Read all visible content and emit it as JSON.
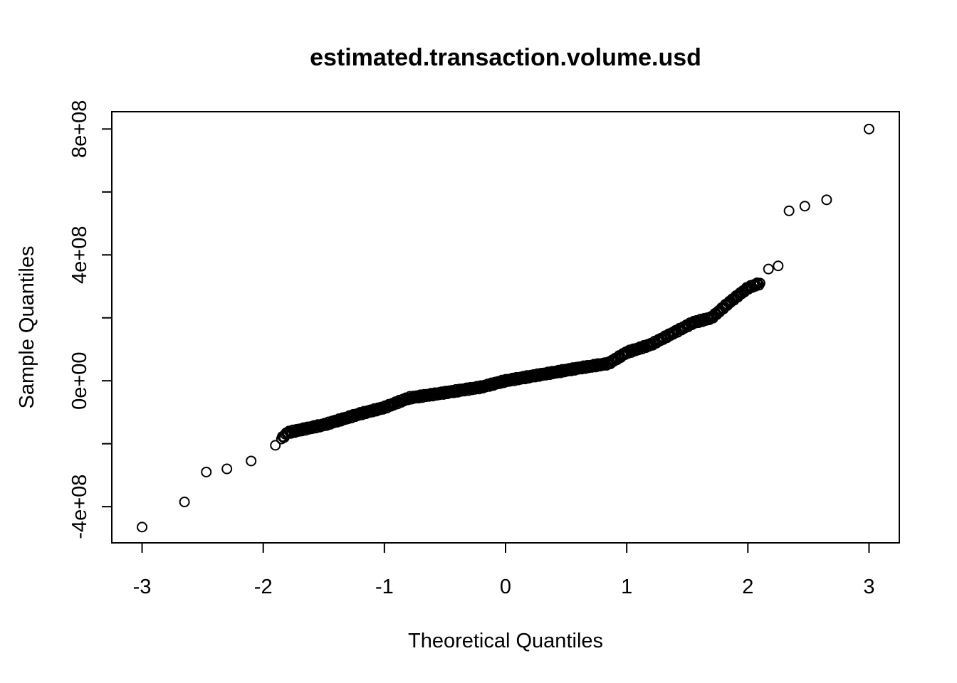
{
  "chart_data": {
    "type": "scatter",
    "title": "estimated.transaction.volume.usd",
    "xlabel": "Theoretical Quantiles",
    "ylabel": "Sample Quantiles",
    "xlim": [
      -3.25,
      3.25
    ],
    "ylim": [
      -515000000,
      855000000
    ],
    "x_ticks": [
      -3,
      -2,
      -1,
      0,
      1,
      2,
      3
    ],
    "x_tick_labels": [
      "-3",
      "-2",
      "-1",
      "0",
      "1",
      "2",
      "3"
    ],
    "y_ticks": [
      -400000000,
      -200000000,
      0,
      200000000,
      400000000,
      600000000,
      800000000
    ],
    "y_tick_labels": [
      "-4e+08",
      "",
      "0e+00",
      "",
      "4e+08",
      "",
      "8e+08"
    ],
    "grid": false,
    "legend": "none",
    "anchors": [
      [
        -3.0,
        -465000000
      ],
      [
        -2.65,
        -385000000
      ],
      [
        -2.47,
        -290000000
      ],
      [
        -2.3,
        -280000000
      ],
      [
        -2.1,
        -255000000
      ],
      [
        -1.9,
        -205000000
      ],
      [
        -1.8,
        -165000000
      ],
      [
        -1.5,
        -140000000
      ],
      [
        -1.2,
        -105000000
      ],
      [
        -1.0,
        -85000000
      ],
      [
        -0.8,
        -55000000
      ],
      [
        -0.5,
        -38000000
      ],
      [
        -0.2,
        -20000000
      ],
      [
        0.0,
        0
      ],
      [
        0.3,
        20000000
      ],
      [
        0.6,
        40000000
      ],
      [
        0.85,
        55000000
      ],
      [
        1.0,
        90000000
      ],
      [
        1.2,
        115000000
      ],
      [
        1.4,
        155000000
      ],
      [
        1.55,
        185000000
      ],
      [
        1.7,
        200000000
      ],
      [
        1.85,
        250000000
      ],
      [
        2.0,
        295000000
      ],
      [
        2.1,
        310000000
      ]
    ],
    "tail_points": [
      [
        2.17,
        355000000
      ],
      [
        2.25,
        365000000
      ],
      [
        2.34,
        540000000
      ],
      [
        2.47,
        555000000
      ],
      [
        2.65,
        575000000
      ],
      [
        3.0,
        800000000
      ]
    ],
    "n_points": 500
  }
}
